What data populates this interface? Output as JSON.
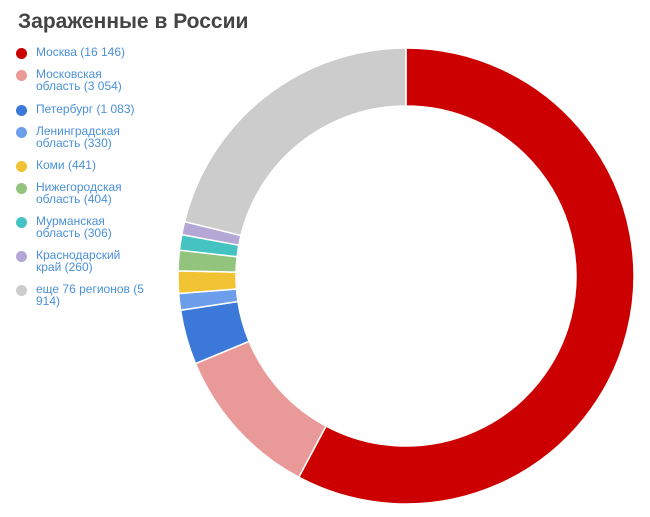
{
  "title": "Зараженные в России",
  "chart_data": {
    "type": "pie",
    "style": "donut",
    "title": "Зараженные в России",
    "legend_position": "left",
    "slices": [
      {
        "label": "Москва (16 146)",
        "name": "Москва",
        "value": 16146,
        "color": "#cc0000"
      },
      {
        "label": "Московская область (3 054)",
        "name": "Московская область",
        "value": 3054,
        "color": "#ea9999"
      },
      {
        "label": "Петербург (1 083)",
        "name": "Петербург",
        "value": 1083,
        "color": "#3c78d8"
      },
      {
        "label": "Ленинградская область (330)",
        "name": "Ленинградская область",
        "value": 330,
        "color": "#6d9eeb"
      },
      {
        "label": "Коми (441)",
        "name": "Коми",
        "value": 441,
        "color": "#f1c232"
      },
      {
        "label": "Нижегородская область (404)",
        "name": "Нижегородская область",
        "value": 404,
        "color": "#93c47d"
      },
      {
        "label": "Мурманская область (306)",
        "name": "Мурманская область",
        "value": 306,
        "color": "#45c3c3"
      },
      {
        "label": "Краснодарский край (260)",
        "name": "Краснодарский край",
        "value": 260,
        "color": "#b4a7d6"
      },
      {
        "label": "еще 76 регионов (5 914)",
        "name": "еще 76 регионов",
        "value": 5914,
        "color": "#cccccc"
      }
    ]
  }
}
